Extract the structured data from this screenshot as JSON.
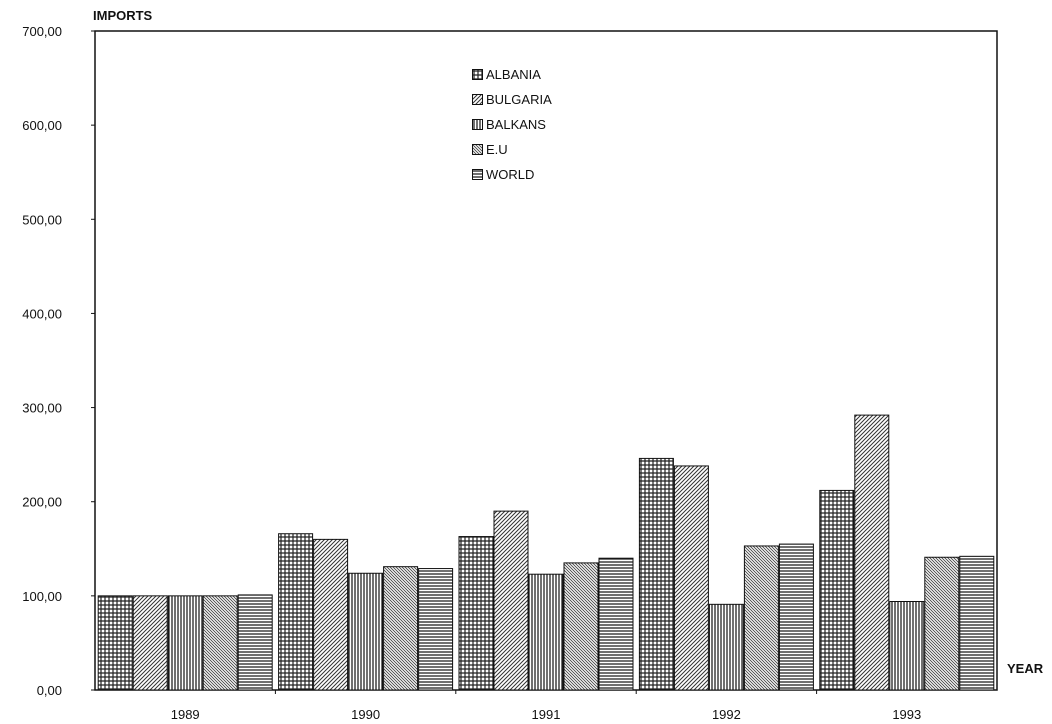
{
  "chart_data": {
    "type": "bar",
    "ylabel": "IMPORTS",
    "xlabel": "YEAR",
    "categories": [
      "1989",
      "1990",
      "1991",
      "1992",
      "1993"
    ],
    "series": [
      {
        "name": "ALBANIA",
        "values": [
          100,
          166,
          163,
          246,
          212
        ]
      },
      {
        "name": "BULGARIA",
        "values": [
          100,
          160,
          190,
          238,
          292
        ]
      },
      {
        "name": "BALKANS",
        "values": [
          100,
          124,
          123,
          91,
          94
        ]
      },
      {
        "name": "E.U",
        "values": [
          100,
          131,
          135,
          153,
          141
        ]
      },
      {
        "name": "WORLD",
        "values": [
          101,
          129,
          140,
          155,
          142
        ]
      }
    ],
    "ylim": [
      0,
      700
    ],
    "yticks": [
      "0,00",
      "100,00",
      "200,00",
      "300,00",
      "400,00",
      "500,00",
      "600,00",
      "700,00"
    ],
    "legend_position": "top-center",
    "grid": false
  }
}
